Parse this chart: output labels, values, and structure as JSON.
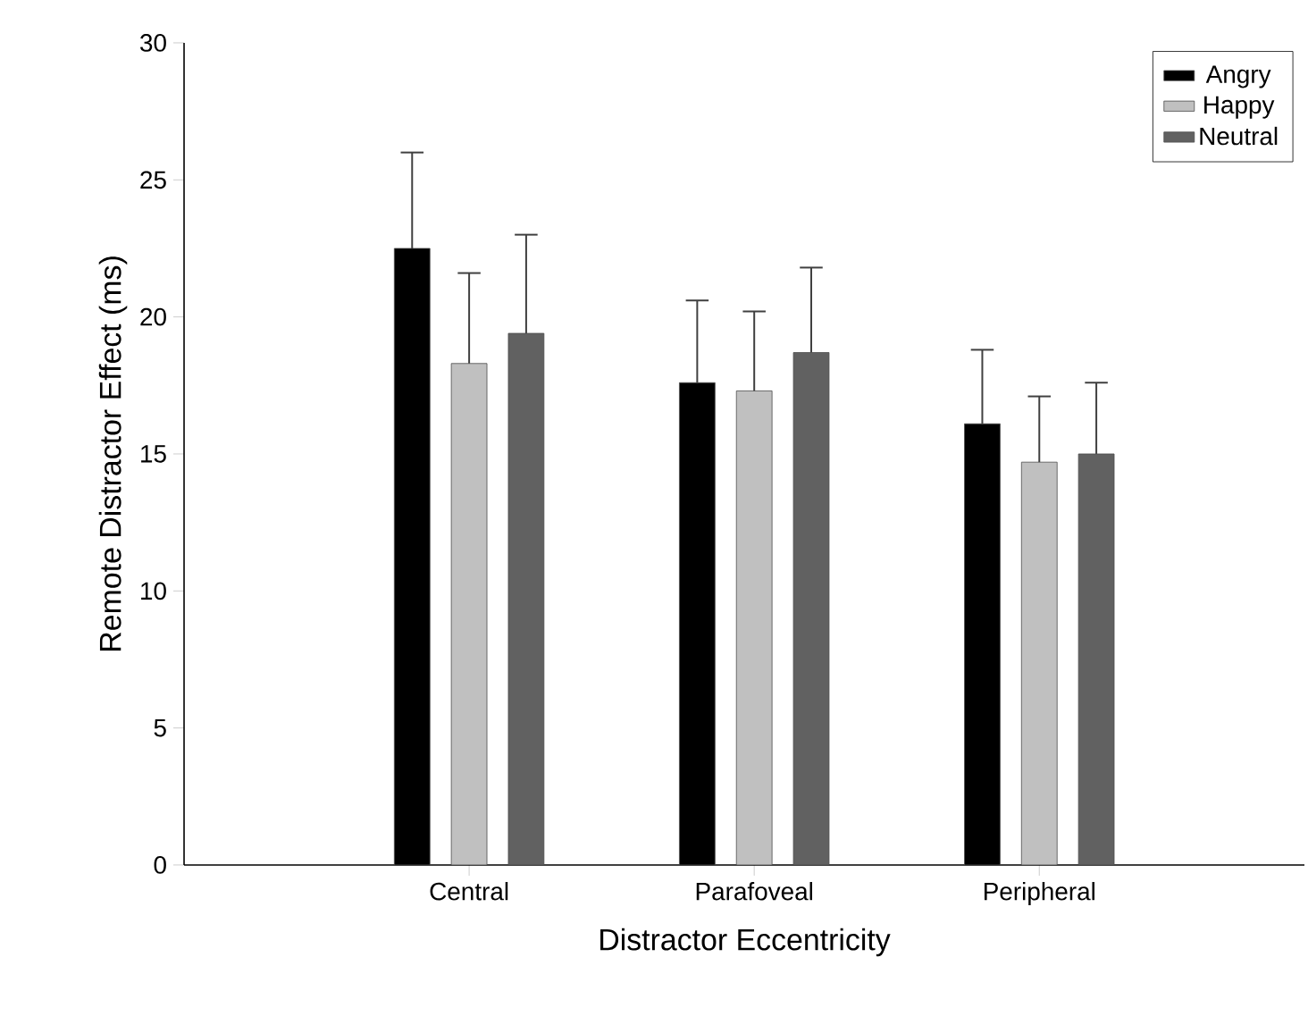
{
  "chart_data": {
    "type": "bar",
    "xlabel": "Distractor Eccentricity",
    "ylabel": "Remote Distractor Effect (ms)",
    "categories": [
      "Central",
      "Parafoveal",
      "Peripheral"
    ],
    "series": [
      {
        "name": "Angry",
        "color": "#000000",
        "values": [
          22.5,
          17.6,
          16.1
        ],
        "errors": [
          [
            22.5,
            26.0
          ],
          [
            17.6,
            20.6
          ],
          [
            16.1,
            18.8
          ]
        ]
      },
      {
        "name": "Happy",
        "color": "#c0c0c0",
        "values": [
          18.3,
          17.3,
          14.7
        ],
        "errors": [
          [
            18.3,
            21.6
          ],
          [
            17.3,
            20.2
          ],
          [
            14.7,
            17.1
          ]
        ]
      },
      {
        "name": "Neutral",
        "color": "#616161",
        "values": [
          19.4,
          18.7,
          15.0
        ],
        "errors": [
          [
            19.4,
            23.0
          ],
          [
            18.7,
            21.8
          ],
          [
            15.0,
            17.6
          ]
        ]
      }
    ],
    "ylim": [
      0,
      30
    ],
    "yticks": [
      0,
      5,
      10,
      15,
      20,
      25,
      30
    ],
    "grid": false,
    "legend": "top right"
  }
}
